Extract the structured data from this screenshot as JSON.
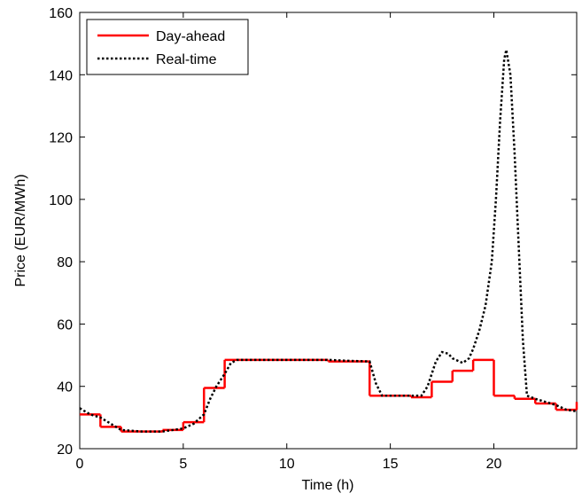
{
  "chart_data": {
    "type": "line",
    "xlabel": "Time (h)",
    "ylabel": "Price (EUR/MWh)",
    "xlim": [
      0,
      24
    ],
    "xticks": [
      0,
      5,
      10,
      15,
      20
    ],
    "ylim": [
      20,
      160
    ],
    "yticks": [
      20,
      40,
      60,
      80,
      100,
      120,
      140,
      160
    ],
    "legend": "upper left",
    "series": [
      {
        "name": "Day-ahead",
        "color": "#ff0000",
        "step": "post",
        "x": [
          0,
          1,
          2,
          3,
          4,
          5,
          6,
          7,
          8,
          9,
          10,
          11,
          12,
          13,
          14,
          15,
          16,
          17,
          18,
          19,
          20,
          21,
          22,
          23,
          24
        ],
        "values": [
          31,
          27,
          25.5,
          25.5,
          26,
          28.5,
          39.5,
          48.5,
          48.5,
          48.5,
          48.5,
          48.5,
          48,
          48,
          37,
          37,
          36.5,
          41.5,
          45,
          48.5,
          37,
          36,
          34.5,
          32.5,
          35
        ]
      },
      {
        "name": "Real-time",
        "color": "#000000",
        "dashed": true,
        "x": [
          0,
          0.5,
          1,
          1.5,
          2,
          3,
          4,
          5,
          5.5,
          6,
          6.3,
          6.6,
          7,
          7.3,
          7.6,
          8,
          10,
          12,
          13,
          14,
          14.3,
          14.6,
          15,
          16,
          16.5,
          16.8,
          17.2,
          17.5,
          17.8,
          18,
          18.5,
          18.8,
          19,
          19.3,
          19.6,
          19.9,
          20.1,
          20.3,
          20.5,
          20.6,
          20.8,
          21,
          21.2,
          21.4,
          21.6,
          22,
          22.5,
          23,
          23.5,
          24
        ],
        "values": [
          33,
          31,
          30,
          28,
          26,
          25.5,
          25.5,
          26.5,
          28,
          31,
          36,
          40,
          44,
          47.5,
          48.5,
          48.5,
          48.5,
          48.5,
          48.2,
          48,
          41,
          37,
          37,
          37,
          37,
          40,
          48,
          51,
          50.5,
          49,
          47.5,
          49,
          52,
          58,
          66,
          80,
          100,
          125,
          145,
          148,
          140,
          115,
          85,
          55,
          37,
          36,
          35,
          34,
          32.5,
          32
        ]
      }
    ]
  }
}
